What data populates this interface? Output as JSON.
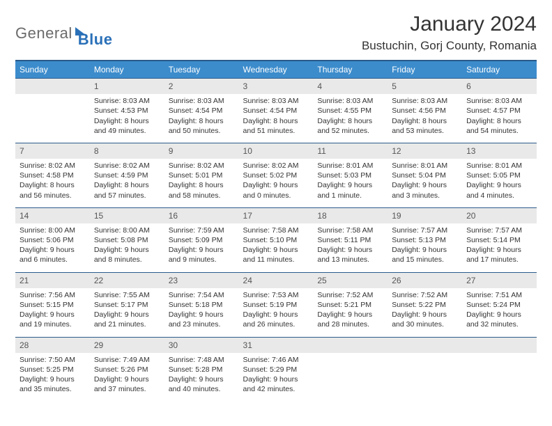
{
  "brand": {
    "word1": "General",
    "word2": "Blue"
  },
  "title": "January 2024",
  "location": "Bustuchin, Gorj County, Romania",
  "colors": {
    "header_bg": "#3c8ccc",
    "header_border": "#2a5a8a",
    "daynum_bg": "#e9e9e9",
    "text": "#333333"
  },
  "weekdays": [
    "Sunday",
    "Monday",
    "Tuesday",
    "Wednesday",
    "Thursday",
    "Friday",
    "Saturday"
  ],
  "first_weekday_index": 1,
  "days": [
    {
      "n": 1,
      "sunrise": "8:03 AM",
      "sunset": "4:53 PM",
      "daylight": "8 hours and 49 minutes."
    },
    {
      "n": 2,
      "sunrise": "8:03 AM",
      "sunset": "4:54 PM",
      "daylight": "8 hours and 50 minutes."
    },
    {
      "n": 3,
      "sunrise": "8:03 AM",
      "sunset": "4:54 PM",
      "daylight": "8 hours and 51 minutes."
    },
    {
      "n": 4,
      "sunrise": "8:03 AM",
      "sunset": "4:55 PM",
      "daylight": "8 hours and 52 minutes."
    },
    {
      "n": 5,
      "sunrise": "8:03 AM",
      "sunset": "4:56 PM",
      "daylight": "8 hours and 53 minutes."
    },
    {
      "n": 6,
      "sunrise": "8:03 AM",
      "sunset": "4:57 PM",
      "daylight": "8 hours and 54 minutes."
    },
    {
      "n": 7,
      "sunrise": "8:02 AM",
      "sunset": "4:58 PM",
      "daylight": "8 hours and 56 minutes."
    },
    {
      "n": 8,
      "sunrise": "8:02 AM",
      "sunset": "4:59 PM",
      "daylight": "8 hours and 57 minutes."
    },
    {
      "n": 9,
      "sunrise": "8:02 AM",
      "sunset": "5:01 PM",
      "daylight": "8 hours and 58 minutes."
    },
    {
      "n": 10,
      "sunrise": "8:02 AM",
      "sunset": "5:02 PM",
      "daylight": "9 hours and 0 minutes."
    },
    {
      "n": 11,
      "sunrise": "8:01 AM",
      "sunset": "5:03 PM",
      "daylight": "9 hours and 1 minute."
    },
    {
      "n": 12,
      "sunrise": "8:01 AM",
      "sunset": "5:04 PM",
      "daylight": "9 hours and 3 minutes."
    },
    {
      "n": 13,
      "sunrise": "8:01 AM",
      "sunset": "5:05 PM",
      "daylight": "9 hours and 4 minutes."
    },
    {
      "n": 14,
      "sunrise": "8:00 AM",
      "sunset": "5:06 PM",
      "daylight": "9 hours and 6 minutes."
    },
    {
      "n": 15,
      "sunrise": "8:00 AM",
      "sunset": "5:08 PM",
      "daylight": "9 hours and 8 minutes."
    },
    {
      "n": 16,
      "sunrise": "7:59 AM",
      "sunset": "5:09 PM",
      "daylight": "9 hours and 9 minutes."
    },
    {
      "n": 17,
      "sunrise": "7:58 AM",
      "sunset": "5:10 PM",
      "daylight": "9 hours and 11 minutes."
    },
    {
      "n": 18,
      "sunrise": "7:58 AM",
      "sunset": "5:11 PM",
      "daylight": "9 hours and 13 minutes."
    },
    {
      "n": 19,
      "sunrise": "7:57 AM",
      "sunset": "5:13 PM",
      "daylight": "9 hours and 15 minutes."
    },
    {
      "n": 20,
      "sunrise": "7:57 AM",
      "sunset": "5:14 PM",
      "daylight": "9 hours and 17 minutes."
    },
    {
      "n": 21,
      "sunrise": "7:56 AM",
      "sunset": "5:15 PM",
      "daylight": "9 hours and 19 minutes."
    },
    {
      "n": 22,
      "sunrise": "7:55 AM",
      "sunset": "5:17 PM",
      "daylight": "9 hours and 21 minutes."
    },
    {
      "n": 23,
      "sunrise": "7:54 AM",
      "sunset": "5:18 PM",
      "daylight": "9 hours and 23 minutes."
    },
    {
      "n": 24,
      "sunrise": "7:53 AM",
      "sunset": "5:19 PM",
      "daylight": "9 hours and 26 minutes."
    },
    {
      "n": 25,
      "sunrise": "7:52 AM",
      "sunset": "5:21 PM",
      "daylight": "9 hours and 28 minutes."
    },
    {
      "n": 26,
      "sunrise": "7:52 AM",
      "sunset": "5:22 PM",
      "daylight": "9 hours and 30 minutes."
    },
    {
      "n": 27,
      "sunrise": "7:51 AM",
      "sunset": "5:24 PM",
      "daylight": "9 hours and 32 minutes."
    },
    {
      "n": 28,
      "sunrise": "7:50 AM",
      "sunset": "5:25 PM",
      "daylight": "9 hours and 35 minutes."
    },
    {
      "n": 29,
      "sunrise": "7:49 AM",
      "sunset": "5:26 PM",
      "daylight": "9 hours and 37 minutes."
    },
    {
      "n": 30,
      "sunrise": "7:48 AM",
      "sunset": "5:28 PM",
      "daylight": "9 hours and 40 minutes."
    },
    {
      "n": 31,
      "sunrise": "7:46 AM",
      "sunset": "5:29 PM",
      "daylight": "9 hours and 42 minutes."
    }
  ]
}
